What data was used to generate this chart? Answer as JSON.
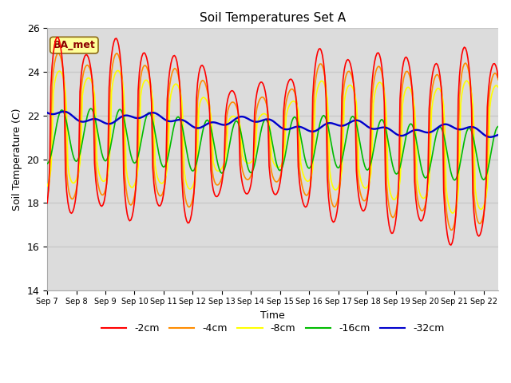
{
  "title": "Soil Temperatures Set A",
  "xlabel": "Time",
  "ylabel": "Soil Temperature (C)",
  "ylim": [
    14,
    26
  ],
  "xlim": [
    0,
    15.5
  ],
  "plot_bg": "#dcdcdc",
  "fig_bg": "#ffffff",
  "grid_color": "#c8c8c8",
  "annotation_text": "BA_met",
  "annotation_color": "#8b0000",
  "annotation_bg": "#ffff99",
  "annotation_border": "#8b6914",
  "colors": {
    "2cm": "#ff0000",
    "4cm": "#ff8c00",
    "8cm": "#ffff00",
    "16cm": "#00bb00",
    "32cm": "#0000cc"
  },
  "xtick_labels": [
    "Sep 7",
    "Sep 8",
    "Sep 9",
    "Sep 10",
    "Sep 11",
    "Sep 12",
    "Sep 13",
    "Sep 14",
    "Sep 15",
    "Sep 16",
    "Sep 17",
    "Sep 18",
    "Sep 19",
    "Sep 20",
    "Sep 21",
    "Sep 22"
  ],
  "ytick_values": [
    14,
    16,
    18,
    20,
    22,
    24,
    26
  ]
}
